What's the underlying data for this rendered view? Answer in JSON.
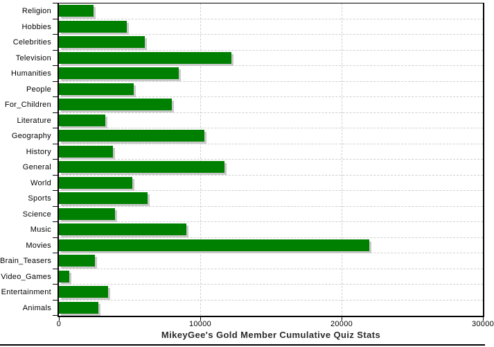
{
  "chart_data": {
    "type": "bar",
    "orientation": "horizontal",
    "title": "MikeyGee's Gold Member Cumulative Quiz Stats",
    "categories": [
      "Religion",
      "Hobbies",
      "Celebrities",
      "Television",
      "Humanities",
      "People",
      "For_Children",
      "Literature",
      "Geography",
      "History",
      "General",
      "World",
      "Sports",
      "Science",
      "Music",
      "Movies",
      "Brain_Teasers",
      "Video_Games",
      "Entertainment",
      "Animals"
    ],
    "values": [
      2450,
      4800,
      6100,
      12200,
      8500,
      5300,
      8000,
      3300,
      10300,
      3800,
      11700,
      5200,
      6250,
      3950,
      9000,
      21950,
      2550,
      750,
      3500,
      2800
    ],
    "xlabel": "",
    "ylabel": "",
    "xlim": [
      0,
      30000
    ],
    "x_ticks": [
      0,
      10000,
      20000,
      30000
    ],
    "x_tick_labels": [
      "0",
      "10000",
      "20000",
      "30000"
    ],
    "grid": "dashed",
    "legend": "none",
    "colors": {
      "bar": "#008000",
      "bar_shadow": "#c9c9c9",
      "gridline": "#cfcfcf",
      "axis": "#000000",
      "text": "#000000",
      "title": "#2a2a2a",
      "background": "#ffffff"
    }
  }
}
